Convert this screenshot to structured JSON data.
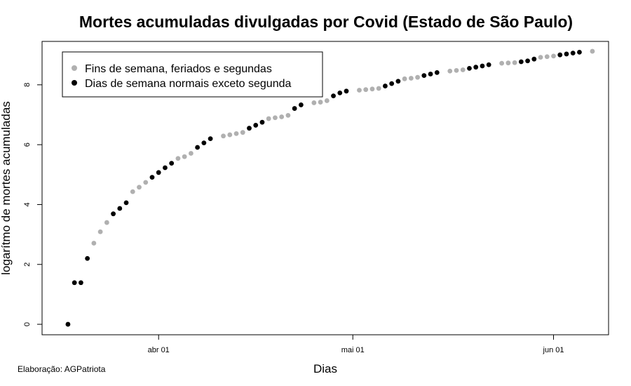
{
  "chart_data": {
    "type": "scatter",
    "title": "Mortes acumuladas divulgadas por Covid (Estado de São Paulo)",
    "xlabel": "Dias",
    "ylabel": "logarítmo de mortes acumuladas",
    "x_ticks": [
      {
        "day": 14,
        "label": "abr 01"
      },
      {
        "day": 44,
        "label": "mai 01"
      },
      {
        "day": 75,
        "label": "jun 01"
      }
    ],
    "y_ticks": [
      0,
      2,
      4,
      6,
      8
    ],
    "xlim": [
      -4,
      83.5
    ],
    "ylim": [
      -0.35,
      9.45
    ],
    "legend": {
      "position": "top-left",
      "entries": [
        {
          "label": "Fins de semana, feriados e segundas",
          "color": "#b0b0b0"
        },
        {
          "label": "Dias de semana normais exceto segunda",
          "color": "#000000"
        }
      ]
    },
    "x_origin": "2020-03-18",
    "series": [
      {
        "name": "Fins de semana, feriados e segundas",
        "color": "#b0b0b0",
        "points": [
          [
            4,
            2.71
          ],
          [
            5,
            3.09
          ],
          [
            6,
            3.4
          ],
          [
            10,
            4.43
          ],
          [
            11,
            4.58
          ],
          [
            12,
            4.74
          ],
          [
            17,
            5.54
          ],
          [
            18,
            5.6
          ],
          [
            19,
            5.71
          ],
          [
            24,
            6.29
          ],
          [
            25,
            6.33
          ],
          [
            26,
            6.37
          ],
          [
            27,
            6.41
          ],
          [
            31,
            6.87
          ],
          [
            32,
            6.9
          ],
          [
            33,
            6.93
          ],
          [
            34,
            6.98
          ],
          [
            38,
            7.4
          ],
          [
            39,
            7.42
          ],
          [
            40,
            7.47
          ],
          [
            45,
            7.82
          ],
          [
            46,
            7.84
          ],
          [
            47,
            7.86
          ],
          [
            48,
            7.88
          ],
          [
            52,
            8.2
          ],
          [
            53,
            8.22
          ],
          [
            54,
            8.25
          ],
          [
            59,
            8.46
          ],
          [
            60,
            8.48
          ],
          [
            61,
            8.5
          ],
          [
            67,
            8.72
          ],
          [
            68,
            8.73
          ],
          [
            69,
            8.74
          ],
          [
            73,
            8.92
          ],
          [
            74,
            8.94
          ],
          [
            75,
            8.96
          ],
          [
            81,
            9.12
          ]
        ]
      },
      {
        "name": "Dias de semana normais exceto segunda",
        "color": "#000000",
        "points": [
          [
            0,
            0.0
          ],
          [
            1,
            1.39
          ],
          [
            2,
            1.39
          ],
          [
            3,
            2.2
          ],
          [
            7,
            3.69
          ],
          [
            8,
            3.87
          ],
          [
            9,
            4.06
          ],
          [
            13,
            4.91
          ],
          [
            14,
            5.07
          ],
          [
            15,
            5.23
          ],
          [
            16,
            5.38
          ],
          [
            20,
            5.91
          ],
          [
            21,
            6.06
          ],
          [
            22,
            6.2
          ],
          [
            28,
            6.55
          ],
          [
            29,
            6.65
          ],
          [
            30,
            6.75
          ],
          [
            35,
            7.21
          ],
          [
            36,
            7.33
          ],
          [
            41,
            7.63
          ],
          [
            42,
            7.73
          ],
          [
            43,
            7.79
          ],
          [
            49,
            7.96
          ],
          [
            50,
            8.04
          ],
          [
            51,
            8.12
          ],
          [
            55,
            8.31
          ],
          [
            56,
            8.36
          ],
          [
            57,
            8.41
          ],
          [
            62,
            8.55
          ],
          [
            63,
            8.59
          ],
          [
            64,
            8.63
          ],
          [
            65,
            8.67
          ],
          [
            70,
            8.77
          ],
          [
            71,
            8.8
          ],
          [
            72,
            8.86
          ],
          [
            76,
            9.0
          ],
          [
            77,
            9.03
          ],
          [
            78,
            9.06
          ],
          [
            79,
            9.09
          ]
        ]
      }
    ]
  },
  "credit": "Elaboração: AGPatriota"
}
